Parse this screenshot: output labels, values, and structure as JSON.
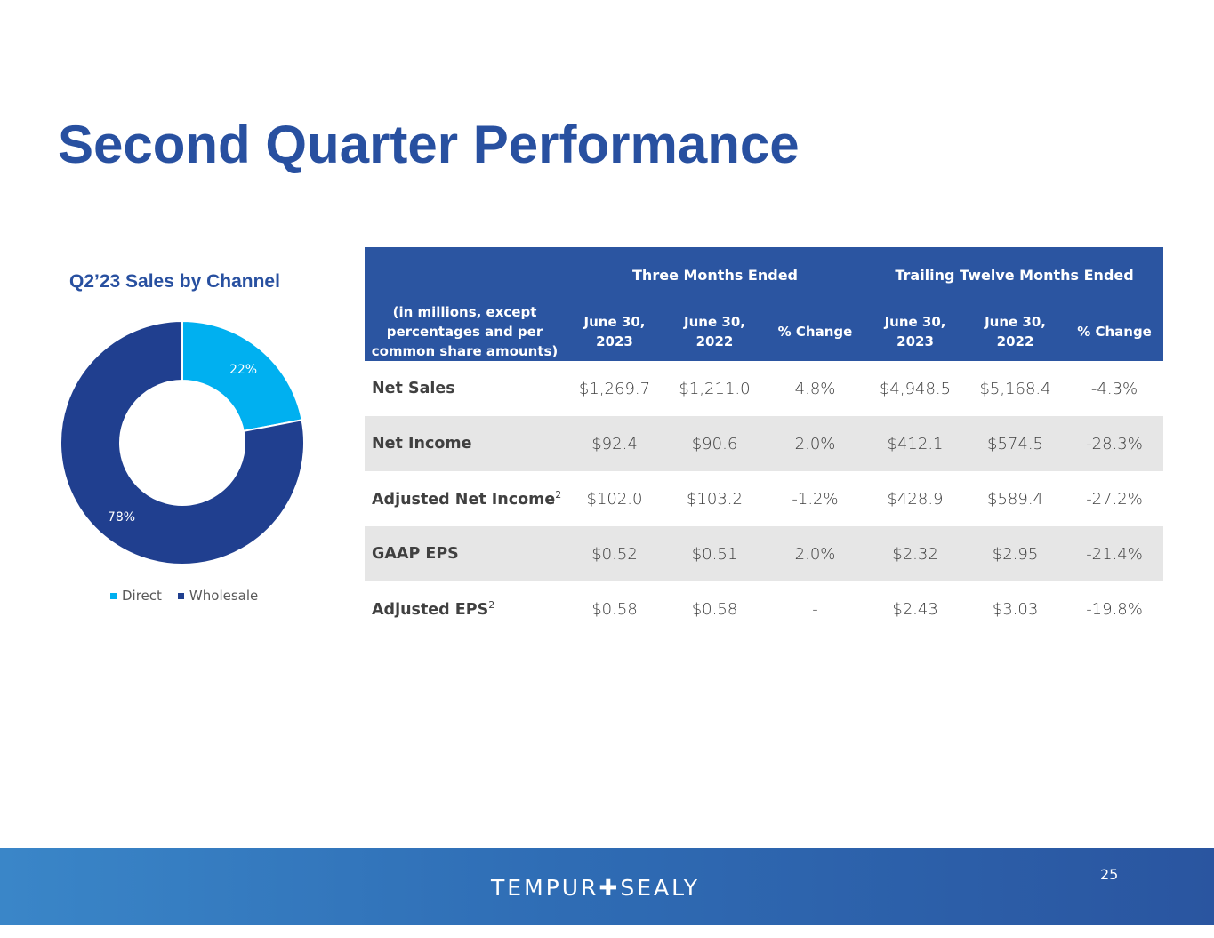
{
  "slide": {
    "title": "Second Quarter Performance",
    "page_number": "25",
    "footer_logo": "TEMPUR✚SEALY"
  },
  "colors": {
    "title": "#2850a0",
    "header_bg": "#2b55a1",
    "direct": "#00b0f0",
    "wholesale": "#203f8f",
    "row_shade": "#e6e6e6"
  },
  "chart_data": {
    "type": "pie",
    "variant": "donut",
    "title": "Q2’23 Sales by Channel",
    "categories": [
      "Direct",
      "Wholesale"
    ],
    "values": [
      22,
      78
    ],
    "labels": [
      "22%",
      "78%"
    ],
    "legend": "bottom"
  },
  "table": {
    "group_headers": [
      "Three Months Ended",
      "Trailing Twelve Months Ended"
    ],
    "row_header_label": "(in millions, except percentages and per common share amounts)",
    "columns": [
      "June 30, 2023",
      "June 30, 2022",
      "% Change",
      "June 30, 2023",
      "June 30, 2022",
      "% Change"
    ],
    "rows": [
      {
        "label": "Net Sales",
        "sup": "",
        "values": [
          "$1,269.7",
          "$1,211.0",
          "4.8%",
          "$4,948.5",
          "$5,168.4",
          "-4.3%"
        ]
      },
      {
        "label": "Net Income",
        "sup": "",
        "values": [
          "$92.4",
          "$90.6",
          "2.0%",
          "$412.1",
          "$574.5",
          "-28.3%"
        ]
      },
      {
        "label": "Adjusted Net Income",
        "sup": "2",
        "values": [
          "$102.0",
          "$103.2",
          "-1.2%",
          "$428.9",
          "$589.4",
          "-27.2%"
        ]
      },
      {
        "label": "GAAP EPS",
        "sup": "",
        "values": [
          "$0.52",
          "$0.51",
          "2.0%",
          "$2.32",
          "$2.95",
          "-21.4%"
        ]
      },
      {
        "label": "Adjusted EPS",
        "sup": "2",
        "values": [
          "$0.58",
          "$0.58",
          "-",
          "$2.43",
          "$3.03",
          "-19.8%"
        ]
      }
    ]
  }
}
